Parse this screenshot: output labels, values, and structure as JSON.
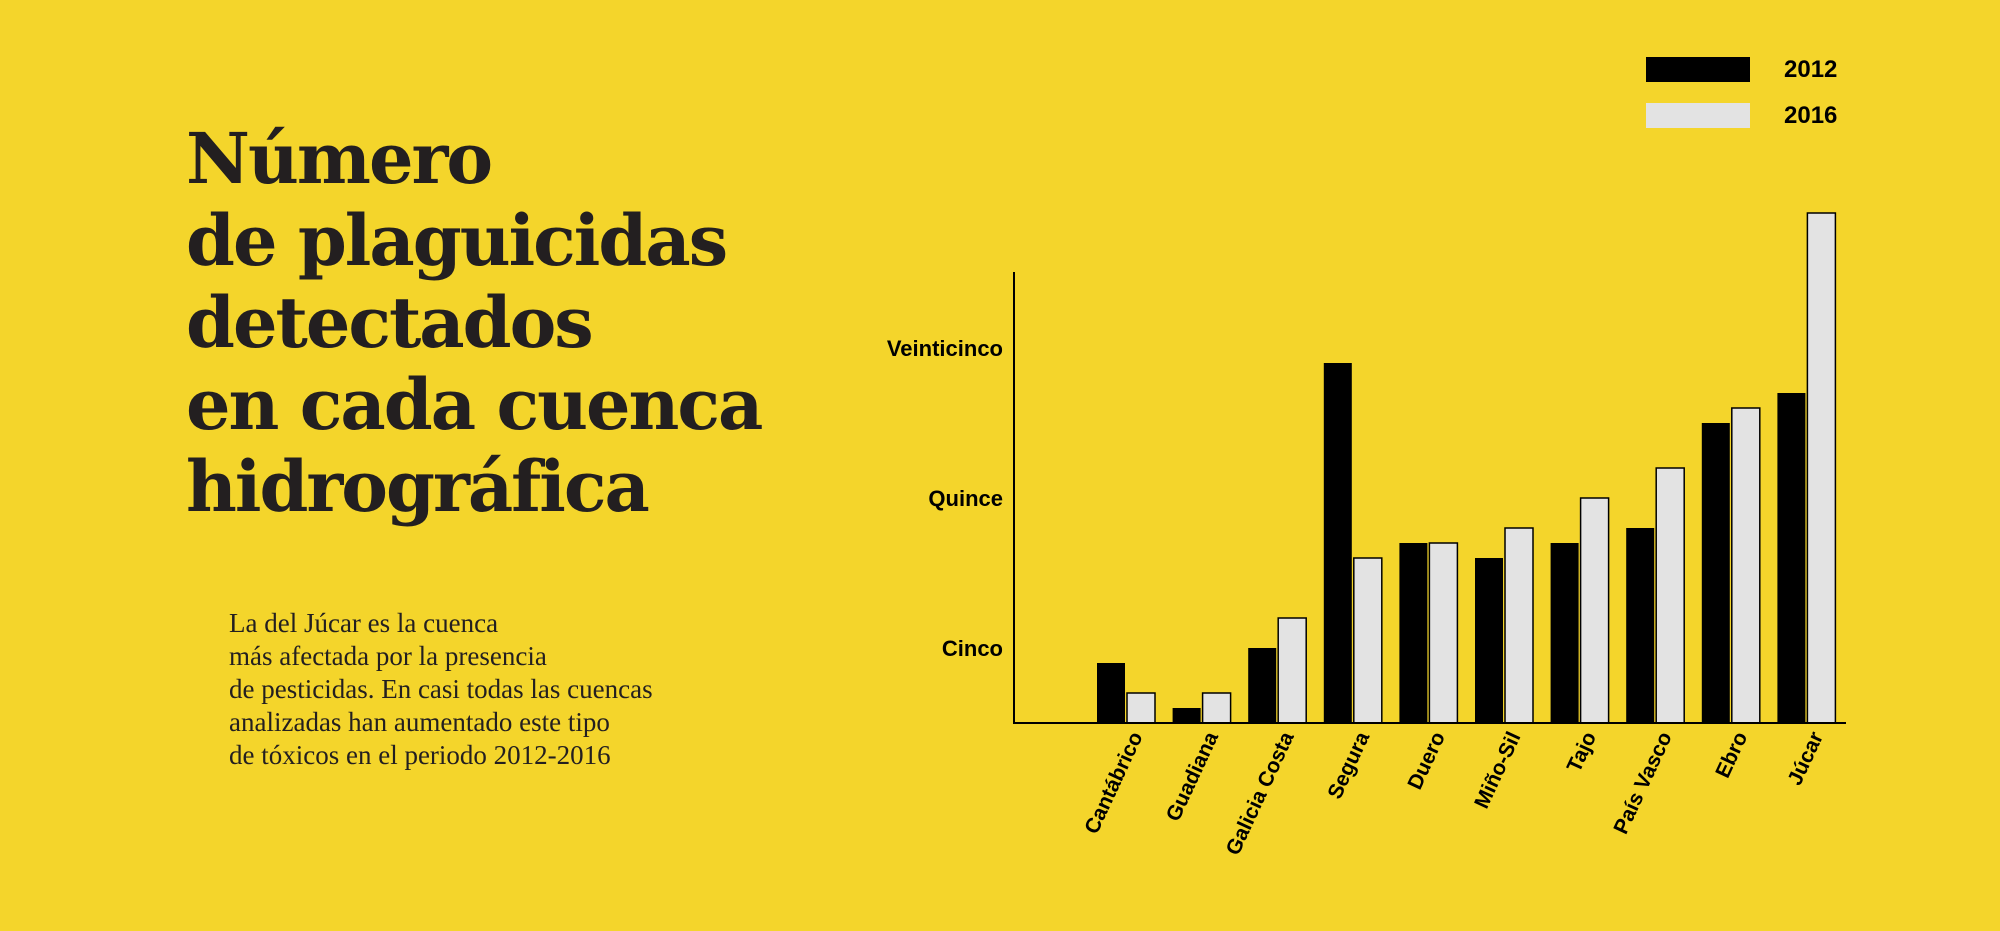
{
  "title_lines": [
    "Número",
    "de plaguicidas",
    "detectados",
    "en cada cuenca",
    "hidrográfica"
  ],
  "description_lines": [
    "La del Júcar es la cuenca",
    "más afectada por la presencia",
    "de pesticidas. En casi todas las cuencas",
    "analizadas han aumentado este tipo",
    "de tóxicos en el periodo 2012-2016"
  ],
  "colors": {
    "background": "#f4d52b",
    "series_2012": "#000000",
    "series_2016": "#e3e3e3",
    "text": "#231f20"
  },
  "chart_data": {
    "type": "bar",
    "title": "Número de plaguicidas detectados en cada cuenca hidrográfica",
    "xlabel": "",
    "ylabel": "",
    "categories": [
      "Cantábrico",
      "Guadiana",
      "Galicia Costa",
      "Segura",
      "Duero",
      "Miño-Sil",
      "Tajo",
      "País Vasco",
      "Ebro",
      "Júcar"
    ],
    "series": [
      {
        "name": "2012",
        "values": [
          4,
          1,
          5,
          24,
          12,
          11,
          12,
          13,
          20,
          22
        ]
      },
      {
        "name": "2016",
        "values": [
          2,
          2,
          7,
          11,
          12,
          13,
          15,
          17,
          21,
          34
        ]
      }
    ],
    "y_ticks": [
      {
        "value": 5,
        "label": "Cinco"
      },
      {
        "value": 15,
        "label": "Quince"
      },
      {
        "value": 25,
        "label": "Veinticinco"
      }
    ],
    "ylim": [
      0,
      30
    ],
    "grid": false,
    "legend_position": "top-right"
  }
}
